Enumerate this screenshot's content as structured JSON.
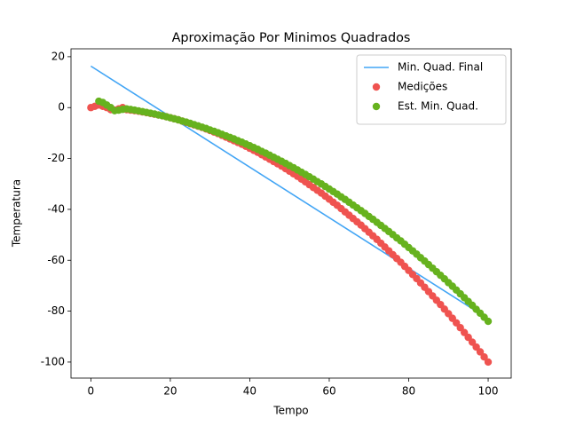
{
  "chart_data": {
    "type": "line",
    "title": "Aproximação Por Minimos Quadrados",
    "x_label": "Tempo",
    "y_label": "Temperatura",
    "xlim": [
      -5,
      105.8
    ],
    "ylim": [
      -106.3,
      23.1
    ],
    "xticks": [
      0,
      20,
      40,
      60,
      80,
      100
    ],
    "yticks": [
      20,
      0,
      -20,
      -40,
      -60,
      -80,
      -100
    ],
    "grid": false,
    "legend": "upper right",
    "series": [
      {
        "name": "Min. Quad. Final",
        "type": "line",
        "color": "#42a5f5",
        "x": [
          0,
          100
        ],
        "values": [
          16.3,
          -83
        ]
      },
      {
        "name": "Medições",
        "type": "scatter",
        "color": "#ef5350",
        "x": [
          0,
          1,
          2,
          3,
          4,
          5,
          6,
          7,
          8,
          9,
          10,
          11,
          12,
          13,
          14,
          15,
          16,
          17,
          18,
          19,
          20,
          21,
          22,
          23,
          24,
          25,
          26,
          27,
          28,
          29,
          30,
          31,
          32,
          33,
          34,
          35,
          36,
          37,
          38,
          39,
          40,
          41,
          42,
          43,
          44,
          45,
          46,
          47,
          48,
          49,
          50,
          51,
          52,
          53,
          54,
          55,
          56,
          57,
          58,
          59,
          60,
          61,
          62,
          63,
          64,
          65,
          66,
          67,
          68,
          69,
          70,
          71,
          72,
          73,
          74,
          75,
          76,
          77,
          78,
          79,
          80,
          81,
          82,
          83,
          84,
          85,
          86,
          87,
          88,
          89,
          90,
          91,
          92,
          93,
          94,
          95,
          96,
          97,
          98,
          99,
          100
        ],
        "values": [
          0,
          0.5,
          1,
          0.5,
          0,
          -0.8,
          -1,
          -0.5,
          0,
          -0.8,
          -1,
          -1.2,
          -1.4,
          -1.7,
          -2,
          -2.3,
          -2.6,
          -2.9,
          -3.2,
          -3.6,
          -4,
          -4.4,
          -4.8,
          -5.3,
          -5.8,
          -6.3,
          -6.8,
          -7.3,
          -7.8,
          -8.4,
          -9,
          -9.6,
          -10.2,
          -10.9,
          -11.6,
          -12.3,
          -13,
          -13.7,
          -14.4,
          -15.2,
          -16,
          -16.8,
          -17.6,
          -18.5,
          -19.4,
          -20.3,
          -21.2,
          -22.1,
          -23,
          -24,
          -25,
          -26,
          -27,
          -28.1,
          -29.2,
          -30.3,
          -31.4,
          -32.5,
          -33.6,
          -34.8,
          -36,
          -37.2,
          -38.4,
          -39.7,
          -41,
          -42.3,
          -43.6,
          -44.9,
          -46.2,
          -47.6,
          -49,
          -50.4,
          -51.8,
          -53.3,
          -54.8,
          -56.3,
          -57.8,
          -59.3,
          -60.8,
          -62.4,
          -64,
          -65.6,
          -67.2,
          -68.9,
          -70.6,
          -72.3,
          -74,
          -75.7,
          -77.4,
          -79.2,
          -81,
          -82.8,
          -84.6,
          -86.5,
          -88.4,
          -90.3,
          -92.2,
          -94.1,
          -96,
          -98,
          -100
        ]
      },
      {
        "name": "Est. Min. Quad.",
        "type": "scatter",
        "color": "#66b21e",
        "x": [
          2,
          3,
          4,
          5,
          6,
          7,
          8,
          9,
          10,
          11,
          12,
          13,
          14,
          15,
          16,
          17,
          18,
          19,
          20,
          21,
          22,
          23,
          24,
          25,
          26,
          27,
          28,
          29,
          30,
          31,
          32,
          33,
          34,
          35,
          36,
          37,
          38,
          39,
          40,
          41,
          42,
          43,
          44,
          45,
          46,
          47,
          48,
          49,
          50,
          51,
          52,
          53,
          54,
          55,
          56,
          57,
          58,
          59,
          60,
          61,
          62,
          63,
          64,
          65,
          66,
          67,
          68,
          69,
          70,
          71,
          72,
          73,
          74,
          75,
          76,
          77,
          78,
          79,
          80,
          81,
          82,
          83,
          84,
          85,
          86,
          87,
          88,
          89,
          90,
          91,
          92,
          93,
          94,
          95,
          96,
          97,
          98,
          99,
          100
        ],
        "values": [
          2.5,
          2,
          1,
          0,
          -1.2,
          -1,
          -0.7,
          -0.5,
          -0.75,
          -1,
          -1.3,
          -1.6,
          -1.9,
          -2.2,
          -2.5,
          -2.9,
          -3.2,
          -3.6,
          -4,
          -4.4,
          -4.8,
          -5.3,
          -5.7,
          -6.2,
          -6.7,
          -7.2,
          -7.7,
          -8.2,
          -8.8,
          -9.3,
          -9.9,
          -10.5,
          -11.1,
          -11.7,
          -12.3,
          -13,
          -13.6,
          -14.3,
          -15,
          -15.7,
          -16.4,
          -17.2,
          -17.9,
          -18.7,
          -19.5,
          -20.3,
          -21.1,
          -21.9,
          -22.8,
          -23.6,
          -24.5,
          -25.4,
          -26.3,
          -27.2,
          -28.1,
          -29.1,
          -30,
          -31,
          -32,
          -33,
          -34,
          -35.1,
          -36.1,
          -37.2,
          -38.3,
          -39.4,
          -40.5,
          -41.6,
          -42.8,
          -43.9,
          -45.1,
          -46.3,
          -47.5,
          -48.7,
          -49.9,
          -51.2,
          -52.4,
          -53.7,
          -55,
          -56.3,
          -57.6,
          -59,
          -60.3,
          -61.7,
          -63.1,
          -64.5,
          -65.9,
          -67.3,
          -68.8,
          -70.2,
          -71.7,
          -73.2,
          -74.7,
          -76.2,
          -77.7,
          -79.3,
          -80.8,
          -82.4,
          -84
        ]
      }
    ]
  }
}
